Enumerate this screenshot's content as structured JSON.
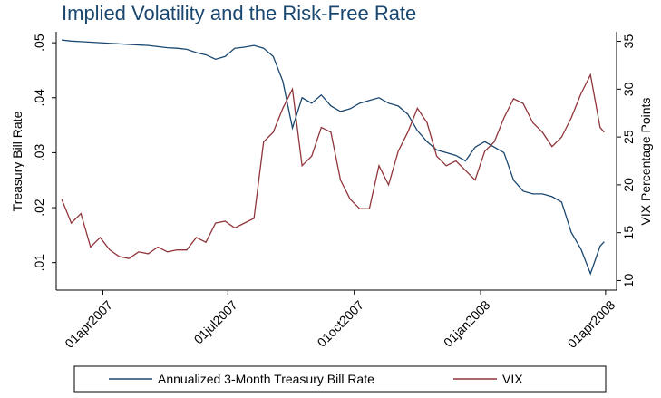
{
  "chart_data": {
    "type": "line",
    "title": "Implied Volatility and the Risk-Free Rate",
    "ylabel": "Treasury Bill Rate",
    "y2label": "VIX Percentage Points",
    "x": [
      "2007-03-02",
      "2007-03-09",
      "2007-03-16",
      "2007-03-23",
      "2007-03-30",
      "2007-04-06",
      "2007-04-13",
      "2007-04-20",
      "2007-04-27",
      "2007-05-04",
      "2007-05-11",
      "2007-05-18",
      "2007-05-25",
      "2007-06-01",
      "2007-06-08",
      "2007-06-15",
      "2007-06-22",
      "2007-06-29",
      "2007-07-06",
      "2007-07-13",
      "2007-07-20",
      "2007-07-27",
      "2007-08-03",
      "2007-08-10",
      "2007-08-17",
      "2007-08-24",
      "2007-08-31",
      "2007-09-07",
      "2007-09-14",
      "2007-09-21",
      "2007-09-28",
      "2007-10-05",
      "2007-10-12",
      "2007-10-19",
      "2007-10-26",
      "2007-11-02",
      "2007-11-09",
      "2007-11-16",
      "2007-11-23",
      "2007-11-30",
      "2007-12-07",
      "2007-12-14",
      "2007-12-21",
      "2007-12-28",
      "2008-01-04",
      "2008-01-11",
      "2008-01-18",
      "2008-01-25",
      "2008-02-01",
      "2008-02-08",
      "2008-02-15",
      "2008-02-22",
      "2008-02-29",
      "2008-03-07",
      "2008-03-14",
      "2008-03-21",
      "2008-03-28",
      "2008-03-31"
    ],
    "series": [
      {
        "name": "Annualized 3-Month Treasury Bill Rate",
        "color": "#1a476f",
        "axis": "y",
        "values": [
          0.0505,
          0.0503,
          0.0502,
          0.0501,
          0.05,
          0.0499,
          0.0498,
          0.0497,
          0.0496,
          0.0495,
          0.0493,
          0.0491,
          0.049,
          0.0488,
          0.0482,
          0.0478,
          0.047,
          0.0475,
          0.049,
          0.0492,
          0.0495,
          0.049,
          0.0475,
          0.043,
          0.0345,
          0.04,
          0.039,
          0.0405,
          0.0385,
          0.0375,
          0.038,
          0.039,
          0.0395,
          0.04,
          0.039,
          0.0385,
          0.037,
          0.034,
          0.032,
          0.0305,
          0.03,
          0.0295,
          0.0285,
          0.031,
          0.032,
          0.031,
          0.03,
          0.025,
          0.023,
          0.0225,
          0.0225,
          0.022,
          0.021,
          0.0155,
          0.0125,
          0.008,
          0.013,
          0.0138
        ]
      },
      {
        "name": "VIX",
        "color": "#90353b",
        "axis": "y2",
        "values": [
          18.5,
          16.0,
          17.0,
          13.5,
          14.5,
          13.2,
          12.5,
          12.3,
          13.0,
          12.8,
          13.5,
          13.0,
          13.2,
          13.2,
          14.5,
          14.0,
          16.0,
          16.2,
          15.5,
          16.0,
          16.5,
          24.5,
          25.5,
          28.0,
          30.0,
          22.0,
          23.0,
          26.0,
          25.5,
          20.5,
          18.5,
          17.5,
          17.5,
          22.0,
          20.0,
          23.5,
          25.5,
          28.0,
          26.5,
          23.0,
          22.0,
          22.5,
          21.5,
          20.5,
          23.5,
          24.5,
          27.0,
          29.0,
          28.5,
          26.5,
          25.5,
          24.0,
          25.0,
          27.0,
          29.5,
          31.5,
          26.0,
          25.5
        ]
      }
    ],
    "xlim": [
      "2007-02-26",
      "2008-04-09"
    ],
    "xticks": [
      {
        "value": "2007-04-01",
        "label": "01apr2007"
      },
      {
        "value": "2007-07-01",
        "label": "01jul2007"
      },
      {
        "value": "2007-10-01",
        "label": "01oct2007"
      },
      {
        "value": "2008-01-01",
        "label": "01jan2008"
      },
      {
        "value": "2008-04-01",
        "label": "01apr2008"
      }
    ],
    "ylim": [
      0.005,
      0.052
    ],
    "yticks": [
      {
        "value": 0.01,
        "label": ".01"
      },
      {
        "value": 0.02,
        "label": ".02"
      },
      {
        "value": 0.03,
        "label": ".03"
      },
      {
        "value": 0.04,
        "label": ".04"
      },
      {
        "value": 0.05,
        "label": ".05"
      }
    ],
    "y2lim": [
      9,
      36
    ],
    "y2ticks": [
      10,
      15,
      20,
      25,
      30,
      35
    ],
    "legend": "bottom"
  }
}
